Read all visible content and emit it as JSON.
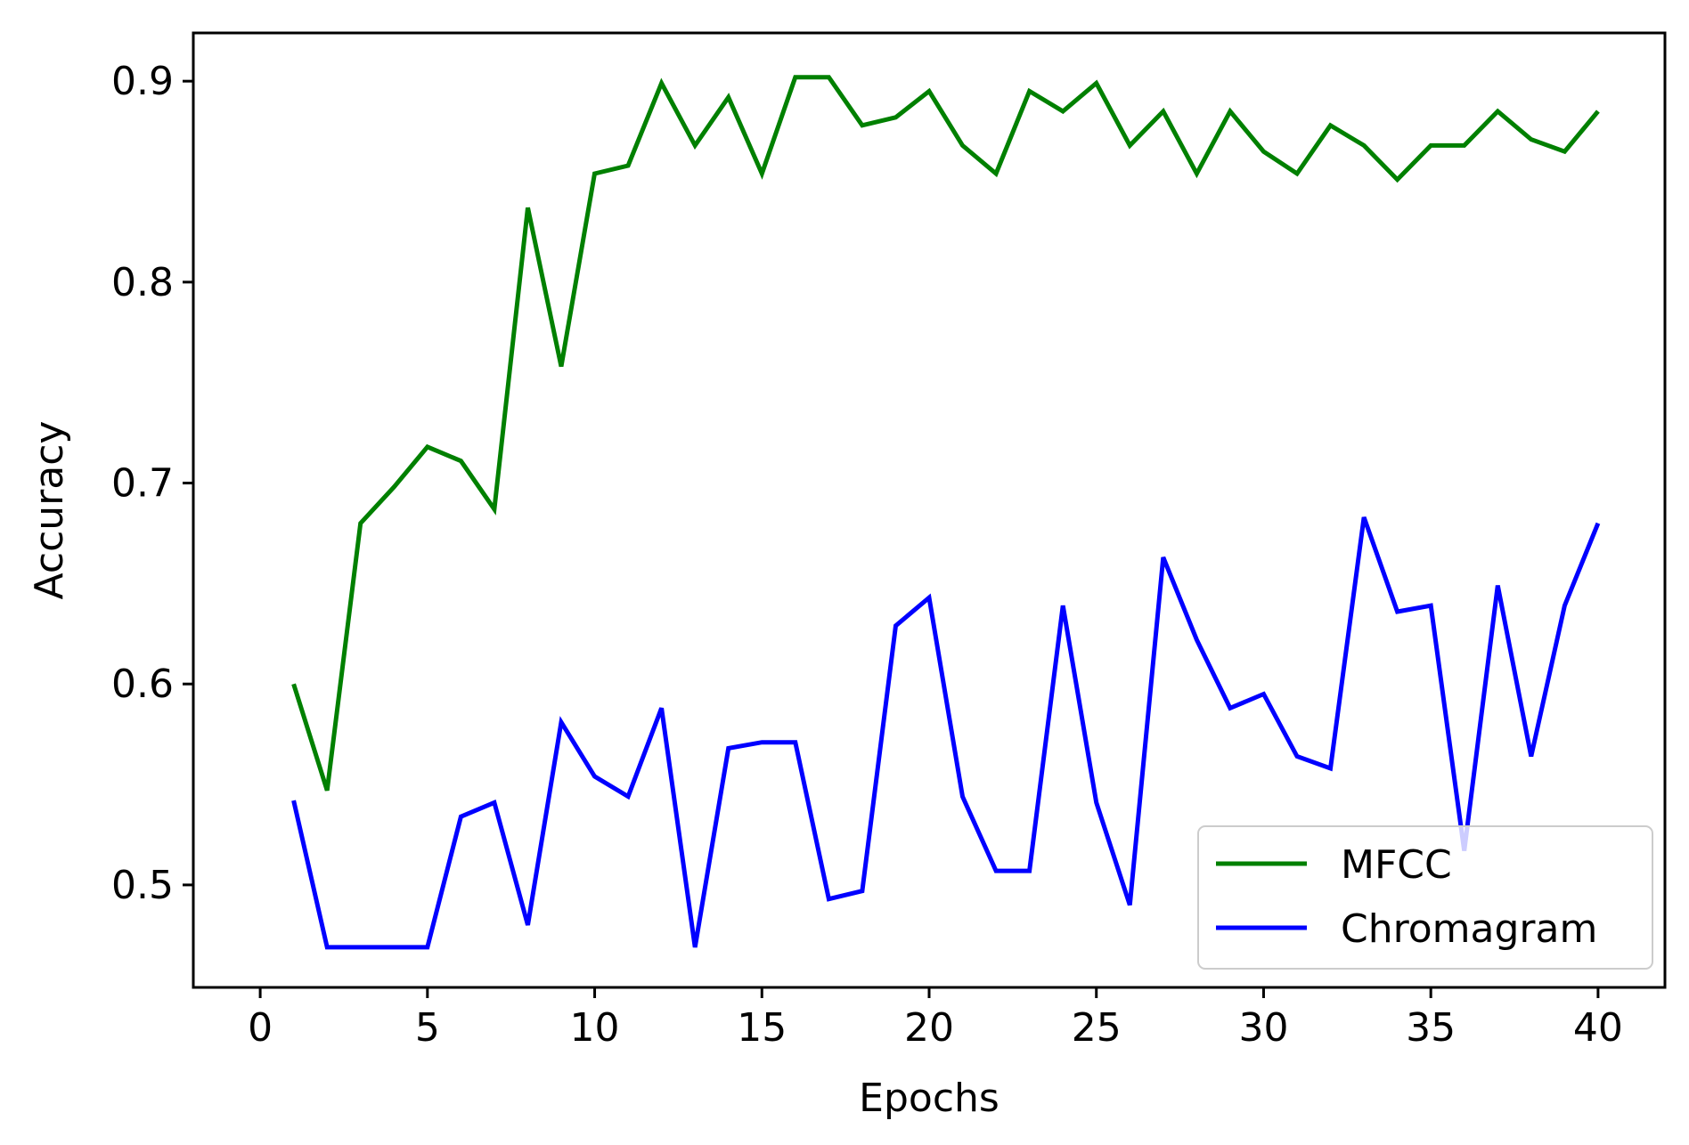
{
  "chart_data": {
    "type": "line",
    "title": "",
    "xlabel": "Epochs",
    "ylabel": "Accuracy",
    "xlim": [
      -2,
      42
    ],
    "ylim": [
      0.449,
      0.924
    ],
    "xticks": [
      0,
      5,
      10,
      15,
      20,
      25,
      30,
      35,
      40
    ],
    "xtick_labels": [
      "0",
      "5",
      "10",
      "15",
      "20",
      "25",
      "30",
      "35",
      "40"
    ],
    "yticks": [
      0.5,
      0.6,
      0.7,
      0.8,
      0.9
    ],
    "ytick_labels": [
      "0.5",
      "0.6",
      "0.7",
      "0.8",
      "0.9"
    ],
    "grid": false,
    "legend_position": "lower-right",
    "x": [
      1,
      2,
      3,
      4,
      5,
      6,
      7,
      8,
      9,
      10,
      11,
      12,
      13,
      14,
      15,
      16,
      17,
      18,
      19,
      20,
      21,
      22,
      23,
      24,
      25,
      26,
      27,
      28,
      29,
      30,
      31,
      32,
      33,
      34,
      35,
      36,
      37,
      38,
      39,
      40
    ],
    "series": [
      {
        "name": "MFCC",
        "color": "#008000",
        "values": [
          0.6,
          0.547,
          0.68,
          0.698,
          0.718,
          0.711,
          0.687,
          0.837,
          0.758,
          0.854,
          0.858,
          0.899,
          0.868,
          0.892,
          0.854,
          0.902,
          0.902,
          0.878,
          0.882,
          0.895,
          0.868,
          0.854,
          0.895,
          0.885,
          0.899,
          0.868,
          0.885,
          0.854,
          0.885,
          0.865,
          0.854,
          0.878,
          0.868,
          0.851,
          0.868,
          0.868,
          0.885,
          0.871,
          0.865,
          0.885
        ]
      },
      {
        "name": "Chromagram",
        "color": "#0000ff",
        "values": [
          0.542,
          0.469,
          0.469,
          0.469,
          0.469,
          0.534,
          0.541,
          0.48,
          0.581,
          0.554,
          0.544,
          0.588,
          0.469,
          0.568,
          0.571,
          0.571,
          0.493,
          0.497,
          0.629,
          0.643,
          0.544,
          0.507,
          0.507,
          0.639,
          0.541,
          0.49,
          0.663,
          0.622,
          0.588,
          0.595,
          0.564,
          0.558,
          0.683,
          0.636,
          0.639,
          0.517,
          0.649,
          0.564,
          0.639,
          0.68
        ]
      }
    ]
  }
}
